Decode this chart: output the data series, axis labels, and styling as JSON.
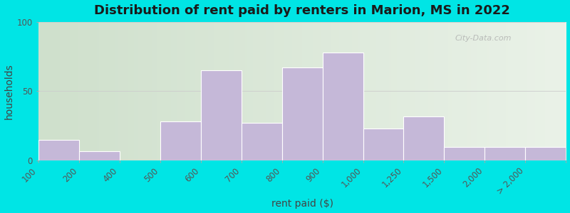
{
  "title": "Distribution of rent paid by renters in Marion, MS in 2022",
  "xlabel": "rent paid ($)",
  "ylabel": "households",
  "bar_color": "#c5b8d8",
  "bar_edgecolor": "#ffffff",
  "background_outer": "#00e5e5",
  "bg_color_left": "#cfe0cc",
  "bg_color_right": "#eaf2e8",
  "yticks": [
    0,
    50,
    100
  ],
  "ylim": [
    0,
    100
  ],
  "bin_edges": [
    100,
    200,
    400,
    500,
    600,
    700,
    800,
    900,
    1000,
    1250,
    1500,
    2000,
    2500,
    3000
  ],
  "tick_labels": [
    "100",
    "200",
    "400",
    "500",
    "600",
    "700",
    "800",
    "900",
    "1,000",
    "1,250",
    "1,500",
    "2,000",
    "> 2,000"
  ],
  "values": [
    15,
    7,
    0,
    28,
    65,
    27,
    67,
    78,
    23,
    32,
    10,
    10,
    10
  ],
  "title_fontsize": 13,
  "axis_label_fontsize": 10,
  "tick_fontsize": 8.5,
  "watermark": "City-Data.com"
}
